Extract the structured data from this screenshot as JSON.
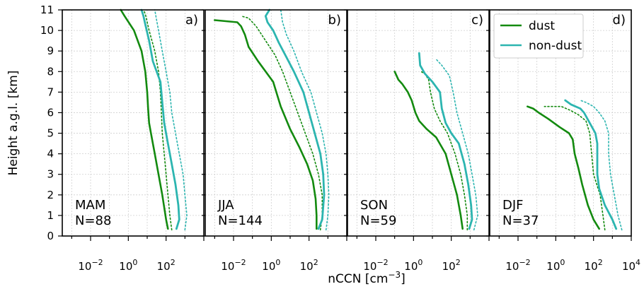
{
  "chart_data": {
    "type": "line",
    "ylabel": "Height a.g.l. [km]",
    "xlabel_main": "nCCN [cm",
    "xlabel_sup": "−3",
    "xlabel_tail": "]",
    "xscale": "log",
    "xlim_log10": [
      -3.5,
      4
    ],
    "ylim": [
      0,
      11
    ],
    "yticks": [
      "0",
      "1",
      "2",
      "3",
      "4",
      "5",
      "6",
      "7",
      "8",
      "9",
      "10",
      "11"
    ],
    "xtick_labels": [
      {
        "base": "10",
        "exp": "−2",
        "log10": -2
      },
      {
        "base": "10",
        "exp": "0",
        "log10": 0
      },
      {
        "base": "10",
        "exp": "2",
        "log10": 2
      }
    ],
    "last_panel_extra_tick": {
      "base": "10",
      "exp": "4",
      "log10": 4
    },
    "grid": true,
    "legend": {
      "position": "top-left of panel d",
      "entries": [
        {
          "name": "dust",
          "color": "#138a0f"
        },
        {
          "name": "non-dust",
          "color": "#2cb5b0"
        }
      ]
    },
    "colors": {
      "dust": "#138a0f",
      "non_dust": "#2cb5b0"
    },
    "panels": [
      {
        "letter": "a)",
        "season": "MAM",
        "n": "N=88",
        "dust_solid": [
          [
            2.1,
            0.35
          ],
          [
            2.0,
            0.8
          ],
          [
            1.8,
            2.0
          ],
          [
            1.6,
            3.0
          ],
          [
            1.4,
            4.0
          ],
          [
            1.2,
            5.0
          ],
          [
            1.1,
            5.5
          ],
          [
            1.05,
            6.2
          ],
          [
            1.0,
            7.0
          ],
          [
            0.9,
            8.0
          ],
          [
            0.7,
            9.0
          ],
          [
            0.3,
            10.0
          ],
          [
            -0.2,
            10.7
          ],
          [
            -0.4,
            11.0
          ]
        ],
        "dust_dotted": [
          [
            2.3,
            0.3
          ],
          [
            2.2,
            1.0
          ],
          [
            2.1,
            2.0
          ],
          [
            2.0,
            3.0
          ],
          [
            1.9,
            4.0
          ],
          [
            1.8,
            5.0
          ],
          [
            1.75,
            6.0
          ],
          [
            1.7,
            7.0
          ],
          [
            1.6,
            8.0
          ],
          [
            1.4,
            9.0
          ],
          [
            1.1,
            10.0
          ],
          [
            0.9,
            10.8
          ],
          [
            0.8,
            11.0
          ]
        ],
        "nondust_solid": [
          [
            2.55,
            0.35
          ],
          [
            2.7,
            0.8
          ],
          [
            2.65,
            1.5
          ],
          [
            2.5,
            2.5
          ],
          [
            2.3,
            3.5
          ],
          [
            2.1,
            4.5
          ],
          [
            1.9,
            5.5
          ],
          [
            1.8,
            6.5
          ],
          [
            1.7,
            7.5
          ],
          [
            1.3,
            8.5
          ],
          [
            1.1,
            9.5
          ],
          [
            0.9,
            10.3
          ],
          [
            0.8,
            10.7
          ],
          [
            0.7,
            11.0
          ]
        ],
        "nondust_dotted": [
          [
            3.0,
            0.3
          ],
          [
            3.1,
            1.0
          ],
          [
            3.0,
            2.0
          ],
          [
            2.9,
            3.0
          ],
          [
            2.7,
            4.0
          ],
          [
            2.5,
            5.0
          ],
          [
            2.3,
            6.0
          ],
          [
            2.2,
            7.0
          ],
          [
            2.0,
            8.0
          ],
          [
            1.8,
            9.0
          ],
          [
            1.6,
            10.0
          ],
          [
            1.5,
            10.5
          ],
          [
            1.4,
            11.0
          ]
        ]
      },
      {
        "letter": "b)",
        "season": "JJA",
        "n": "N=144",
        "dust_solid": [
          [
            2.4,
            0.35
          ],
          [
            2.4,
            1.0
          ],
          [
            2.35,
            1.8
          ],
          [
            2.2,
            2.7
          ],
          [
            1.9,
            3.5
          ],
          [
            1.5,
            4.3
          ],
          [
            1.0,
            5.2
          ],
          [
            0.5,
            6.3
          ],
          [
            0.1,
            7.5
          ],
          [
            -0.7,
            8.5
          ],
          [
            -1.2,
            9.2
          ],
          [
            -1.4,
            9.8
          ],
          [
            -1.6,
            10.2
          ],
          [
            -1.8,
            10.4
          ],
          [
            -3.0,
            10.5
          ]
        ],
        "dust_dotted": [
          [
            2.6,
            0.3
          ],
          [
            2.7,
            1.0
          ],
          [
            2.7,
            2.0
          ],
          [
            2.5,
            3.0
          ],
          [
            2.2,
            4.0
          ],
          [
            1.8,
            5.0
          ],
          [
            1.4,
            6.0
          ],
          [
            1.0,
            7.0
          ],
          [
            0.6,
            8.0
          ],
          [
            0.2,
            8.8
          ],
          [
            -0.3,
            9.5
          ],
          [
            -0.8,
            10.2
          ],
          [
            -1.2,
            10.6
          ],
          [
            -1.6,
            10.7
          ]
        ],
        "nondust_solid": [
          [
            2.5,
            0.35
          ],
          [
            2.7,
            0.8
          ],
          [
            2.8,
            2.0
          ],
          [
            2.75,
            3.0
          ],
          [
            2.6,
            4.0
          ],
          [
            2.3,
            5.0
          ],
          [
            2.0,
            6.0
          ],
          [
            1.7,
            7.0
          ],
          [
            1.2,
            8.0
          ],
          [
            0.8,
            8.7
          ],
          [
            0.4,
            9.4
          ],
          [
            0.1,
            10.0
          ],
          [
            -0.2,
            10.4
          ],
          [
            -0.3,
            10.7
          ],
          [
            -0.1,
            11.0
          ]
        ],
        "nondust_dotted": [
          [
            2.9,
            0.3
          ],
          [
            3.0,
            1.0
          ],
          [
            3.05,
            2.0
          ],
          [
            3.0,
            3.0
          ],
          [
            2.9,
            4.0
          ],
          [
            2.7,
            5.0
          ],
          [
            2.4,
            6.0
          ],
          [
            2.1,
            7.0
          ],
          [
            1.6,
            8.0
          ],
          [
            1.2,
            9.0
          ],
          [
            0.8,
            9.8
          ],
          [
            0.6,
            10.4
          ],
          [
            0.5,
            11.0
          ]
        ]
      },
      {
        "letter": "c)",
        "season": "SON",
        "n": "N=59",
        "dust_solid": [
          [
            2.6,
            0.35
          ],
          [
            2.5,
            1.0
          ],
          [
            2.3,
            2.0
          ],
          [
            2.0,
            3.0
          ],
          [
            1.7,
            4.0
          ],
          [
            1.2,
            4.8
          ],
          [
            0.7,
            5.2
          ],
          [
            0.3,
            5.6
          ],
          [
            0.1,
            6.0
          ],
          [
            -0.1,
            6.6
          ],
          [
            -0.3,
            7.0
          ],
          [
            -0.6,
            7.4
          ],
          [
            -0.8,
            7.6
          ],
          [
            -1.0,
            8.0
          ]
        ],
        "dust_dotted": [
          [
            2.85,
            0.3
          ],
          [
            2.85,
            1.0
          ],
          [
            2.7,
            2.0
          ],
          [
            2.5,
            3.0
          ],
          [
            2.2,
            4.0
          ],
          [
            1.8,
            5.0
          ],
          [
            1.4,
            5.6
          ],
          [
            1.1,
            6.2
          ],
          [
            0.9,
            7.0
          ],
          [
            0.8,
            7.6
          ],
          [
            0.6,
            7.9
          ],
          [
            0.4,
            8.0
          ]
        ],
        "nondust_solid": [
          [
            2.95,
            0.35
          ],
          [
            3.1,
            0.8
          ],
          [
            3.05,
            1.5
          ],
          [
            2.9,
            2.5
          ],
          [
            2.7,
            3.5
          ],
          [
            2.4,
            4.5
          ],
          [
            2.0,
            5.0
          ],
          [
            1.7,
            5.5
          ],
          [
            1.5,
            6.2
          ],
          [
            1.4,
            7.0
          ],
          [
            1.0,
            7.5
          ],
          [
            0.6,
            7.9
          ],
          [
            0.35,
            8.3
          ],
          [
            0.3,
            8.9
          ]
        ],
        "nondust_dotted": [
          [
            3.2,
            0.3
          ],
          [
            3.4,
            1.0
          ],
          [
            3.3,
            2.0
          ],
          [
            3.1,
            3.0
          ],
          [
            2.9,
            4.0
          ],
          [
            2.6,
            5.0
          ],
          [
            2.3,
            6.0
          ],
          [
            2.1,
            7.0
          ],
          [
            1.9,
            7.8
          ],
          [
            1.5,
            8.3
          ],
          [
            1.2,
            8.6
          ]
        ]
      },
      {
        "letter": "d)",
        "season": "DJF",
        "n": "N=37",
        "dust_solid": [
          [
            2.3,
            0.35
          ],
          [
            2.0,
            0.8
          ],
          [
            1.7,
            1.5
          ],
          [
            1.4,
            2.5
          ],
          [
            1.2,
            3.3
          ],
          [
            1.0,
            4.0
          ],
          [
            0.9,
            4.7
          ],
          [
            0.7,
            5.0
          ],
          [
            0.2,
            5.3
          ],
          [
            -0.4,
            5.7
          ],
          [
            -0.9,
            6.0
          ],
          [
            -1.2,
            6.2
          ],
          [
            -1.5,
            6.3
          ]
        ],
        "dust_dotted": [
          [
            2.6,
            0.3
          ],
          [
            2.5,
            1.0
          ],
          [
            2.35,
            2.0
          ],
          [
            2.0,
            3.0
          ],
          [
            1.9,
            4.0
          ],
          [
            1.8,
            5.0
          ],
          [
            1.6,
            5.6
          ],
          [
            1.2,
            5.9
          ],
          [
            0.8,
            6.1
          ],
          [
            0.3,
            6.3
          ],
          [
            -0.6,
            6.3
          ]
        ],
        "nondust_solid": [
          [
            3.2,
            0.35
          ],
          [
            3.0,
            0.8
          ],
          [
            2.6,
            1.5
          ],
          [
            2.3,
            2.3
          ],
          [
            2.2,
            3.0
          ],
          [
            2.2,
            3.6
          ],
          [
            2.2,
            4.5
          ],
          [
            2.1,
            5.0
          ],
          [
            1.8,
            5.5
          ],
          [
            1.5,
            6.0
          ],
          [
            1.3,
            6.2
          ],
          [
            0.8,
            6.4
          ],
          [
            0.5,
            6.6
          ]
        ],
        "nondust_dotted": [
          [
            3.5,
            0.3
          ],
          [
            3.3,
            1.0
          ],
          [
            3.1,
            2.0
          ],
          [
            2.9,
            3.0
          ],
          [
            2.8,
            4.0
          ],
          [
            2.8,
            5.0
          ],
          [
            2.6,
            5.6
          ],
          [
            2.3,
            6.0
          ],
          [
            2.0,
            6.3
          ],
          [
            1.6,
            6.5
          ],
          [
            1.3,
            6.6
          ]
        ]
      }
    ]
  }
}
